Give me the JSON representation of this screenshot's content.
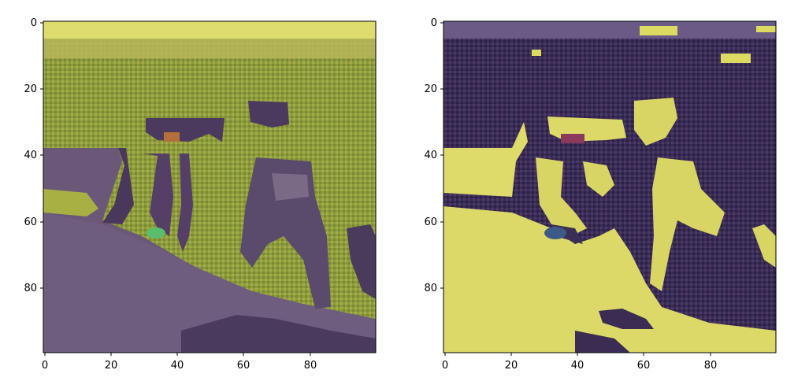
{
  "figure": {
    "panels": [
      {
        "name": "left",
        "x_ticks": [
          "0",
          "20",
          "40",
          "60",
          "80"
        ],
        "y_ticks": [
          "0",
          "20",
          "40",
          "60",
          "80"
        ]
      },
      {
        "name": "right",
        "x_ticks": [
          "0",
          "20",
          "40",
          "60",
          "80"
        ],
        "y_ticks": [
          "0",
          "20",
          "40",
          "60",
          "80"
        ]
      }
    ],
    "colors": {
      "overlay_low": "#46205a",
      "overlay_high": "#e3e05a",
      "left_vegetation": "#8c9a3a",
      "right_vegetation": "#3a2c52"
    }
  }
}
